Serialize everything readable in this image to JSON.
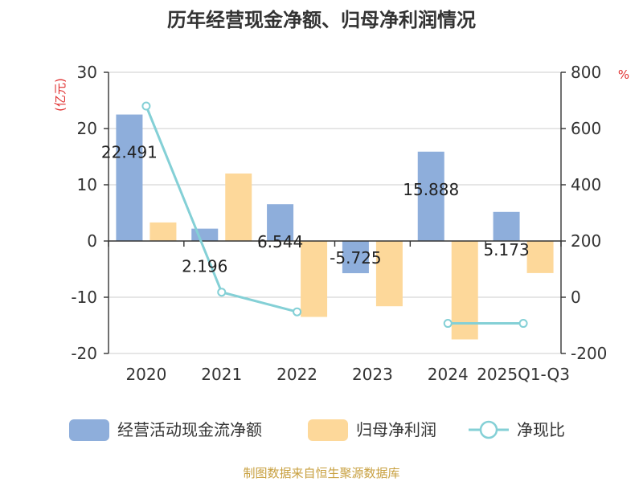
{
  "chart_data": {
    "type": "bar",
    "title": "历年经营现金净额、归母净利润情况",
    "categories": [
      "2020",
      "2021",
      "2022",
      "2023",
      "2024",
      "2025Q1-Q3"
    ],
    "left_axis": {
      "unit": "(亿元)",
      "ylim": [
        -20,
        30
      ],
      "ticks": [
        "30",
        "20",
        "10",
        "0",
        "-10",
        "-20"
      ]
    },
    "right_axis": {
      "unit": "%",
      "ylim": [
        -200,
        800
      ],
      "ticks": [
        "800",
        "600",
        "400",
        "200",
        "0",
        "-200"
      ]
    },
    "series": [
      {
        "name": "经营活动现金流净额",
        "type": "bar",
        "axis": "left",
        "color": "#8eaedb",
        "values": [
          22.491,
          2.196,
          6.544,
          -5.725,
          15.888,
          5.173
        ],
        "labels": [
          "22.491",
          "2.196",
          "6.544",
          "-5.725",
          "15.888",
          "5.173"
        ]
      },
      {
        "name": "归母净利润",
        "type": "bar",
        "axis": "left",
        "color": "#fdd89a",
        "values": [
          3.3,
          12.0,
          -13.5,
          -11.6,
          -17.5,
          -5.7
        ]
      },
      {
        "name": "净现比",
        "type": "line",
        "axis": "right",
        "color": "#84d0d6",
        "values": [
          680,
          18,
          -52,
          null,
          -93,
          -93
        ]
      }
    ],
    "grid": true,
    "legend_position": "bottom"
  },
  "source": "制图数据来自恒生聚源数据库"
}
